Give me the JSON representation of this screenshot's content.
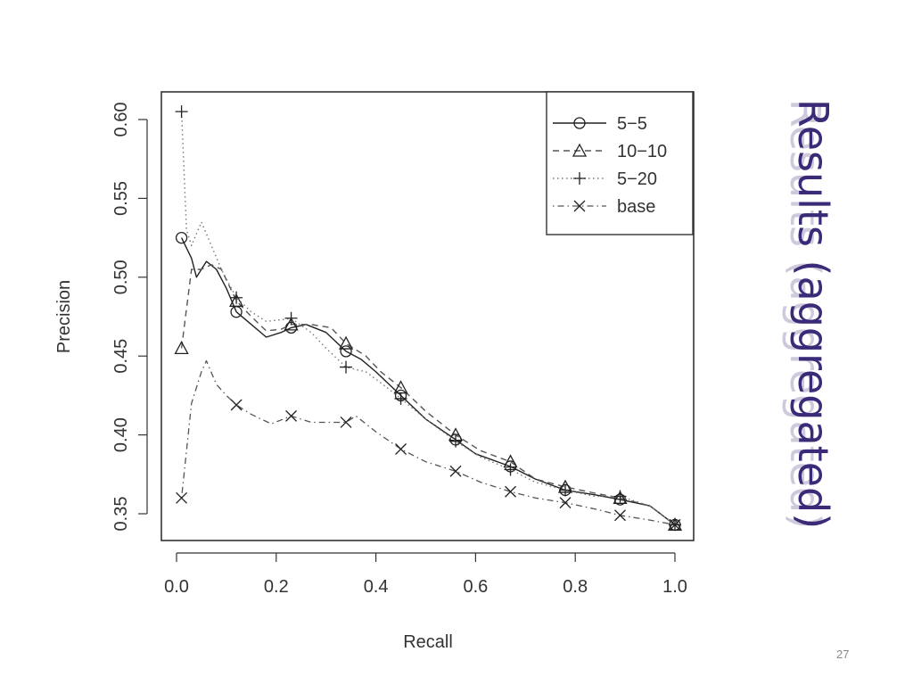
{
  "slide": {
    "title": "Results (aggregated)",
    "page_number": "27",
    "title_color": "#3b2a78"
  },
  "chart_data": {
    "type": "line",
    "xlabel": "Recall",
    "ylabel": "Precision",
    "xlim": [
      0.0,
      1.0
    ],
    "ylim": [
      0.35,
      0.6
    ],
    "x_ticks": [
      "0.0",
      "0.2",
      "0.4",
      "0.6",
      "0.8",
      "1.0"
    ],
    "y_ticks": [
      "0.35",
      "0.40",
      "0.45",
      "0.50",
      "0.55",
      "0.60"
    ],
    "legend_position": "top-right",
    "grid": false,
    "series": [
      {
        "name": "5−5",
        "marker": "circle",
        "line_style": "solid",
        "points": [
          [
            0.01,
            0.525
          ],
          [
            0.03,
            0.512
          ],
          [
            0.04,
            0.5
          ],
          [
            0.06,
            0.51
          ],
          [
            0.08,
            0.505
          ],
          [
            0.1,
            0.493
          ],
          [
            0.12,
            0.478
          ],
          [
            0.15,
            0.47
          ],
          [
            0.18,
            0.462
          ],
          [
            0.21,
            0.465
          ],
          [
            0.23,
            0.468
          ],
          [
            0.26,
            0.47
          ],
          [
            0.3,
            0.465
          ],
          [
            0.34,
            0.453
          ],
          [
            0.37,
            0.448
          ],
          [
            0.4,
            0.44
          ],
          [
            0.45,
            0.425
          ],
          [
            0.5,
            0.41
          ],
          [
            0.56,
            0.397
          ],
          [
            0.6,
            0.388
          ],
          [
            0.67,
            0.38
          ],
          [
            0.72,
            0.372
          ],
          [
            0.78,
            0.365
          ],
          [
            0.84,
            0.362
          ],
          [
            0.89,
            0.359
          ],
          [
            0.95,
            0.355
          ],
          [
            1.0,
            0.343
          ]
        ]
      },
      {
        "name": "10−10",
        "marker": "triangle",
        "line_style": "dashed",
        "points": [
          [
            0.01,
            0.455
          ],
          [
            0.03,
            0.505
          ],
          [
            0.05,
            0.505
          ],
          [
            0.07,
            0.508
          ],
          [
            0.09,
            0.505
          ],
          [
            0.12,
            0.485
          ],
          [
            0.15,
            0.475
          ],
          [
            0.18,
            0.466
          ],
          [
            0.21,
            0.467
          ],
          [
            0.23,
            0.47
          ],
          [
            0.27,
            0.47
          ],
          [
            0.31,
            0.468
          ],
          [
            0.34,
            0.458
          ],
          [
            0.38,
            0.45
          ],
          [
            0.41,
            0.44
          ],
          [
            0.45,
            0.43
          ],
          [
            0.5,
            0.415
          ],
          [
            0.56,
            0.4
          ],
          [
            0.61,
            0.39
          ],
          [
            0.67,
            0.383
          ],
          [
            0.72,
            0.372
          ],
          [
            0.78,
            0.367
          ],
          [
            0.84,
            0.363
          ],
          [
            0.89,
            0.36
          ],
          [
            0.95,
            0.355
          ],
          [
            1.0,
            0.343
          ]
        ]
      },
      {
        "name": "5−20",
        "marker": "plus",
        "line_style": "dotted",
        "points": [
          [
            0.01,
            0.605
          ],
          [
            0.02,
            0.53
          ],
          [
            0.03,
            0.52
          ],
          [
            0.05,
            0.535
          ],
          [
            0.07,
            0.52
          ],
          [
            0.09,
            0.505
          ],
          [
            0.12,
            0.487
          ],
          [
            0.15,
            0.478
          ],
          [
            0.18,
            0.472
          ],
          [
            0.21,
            0.473
          ],
          [
            0.23,
            0.474
          ],
          [
            0.27,
            0.465
          ],
          [
            0.3,
            0.455
          ],
          [
            0.34,
            0.443
          ],
          [
            0.38,
            0.44
          ],
          [
            0.41,
            0.433
          ],
          [
            0.45,
            0.423
          ],
          [
            0.5,
            0.41
          ],
          [
            0.56,
            0.396
          ],
          [
            0.61,
            0.386
          ],
          [
            0.67,
            0.378
          ],
          [
            0.72,
            0.37
          ],
          [
            0.78,
            0.365
          ],
          [
            0.84,
            0.361
          ],
          [
            0.89,
            0.361
          ],
          [
            0.95,
            0.355
          ],
          [
            1.0,
            0.343
          ]
        ]
      },
      {
        "name": "base",
        "marker": "x",
        "line_style": "dotdash",
        "points": [
          [
            0.01,
            0.36
          ],
          [
            0.03,
            0.42
          ],
          [
            0.05,
            0.44
          ],
          [
            0.06,
            0.447
          ],
          [
            0.08,
            0.432
          ],
          [
            0.1,
            0.425
          ],
          [
            0.12,
            0.419
          ],
          [
            0.15,
            0.413
          ],
          [
            0.19,
            0.407
          ],
          [
            0.23,
            0.412
          ],
          [
            0.27,
            0.408
          ],
          [
            0.3,
            0.408
          ],
          [
            0.34,
            0.408
          ],
          [
            0.36,
            0.412
          ],
          [
            0.4,
            0.402
          ],
          [
            0.45,
            0.391
          ],
          [
            0.5,
            0.383
          ],
          [
            0.56,
            0.377
          ],
          [
            0.61,
            0.37
          ],
          [
            0.67,
            0.364
          ],
          [
            0.72,
            0.36
          ],
          [
            0.78,
            0.357
          ],
          [
            0.84,
            0.353
          ],
          [
            0.89,
            0.349
          ],
          [
            0.95,
            0.346
          ],
          [
            1.0,
            0.343
          ]
        ]
      }
    ]
  }
}
